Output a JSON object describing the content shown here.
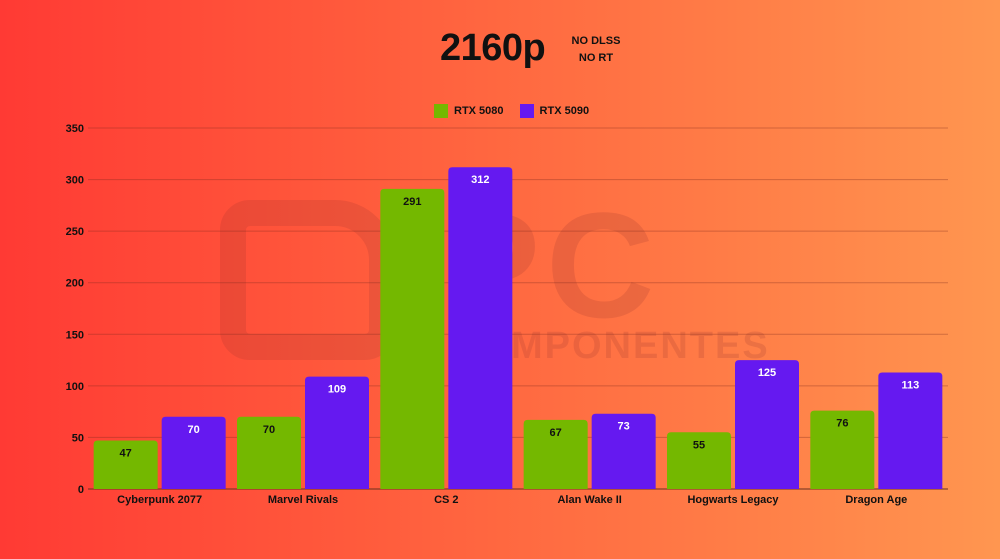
{
  "header": {
    "title": "2160p",
    "subtitle_line1": "NO DLSS",
    "subtitle_line2": "NO RT"
  },
  "watermark": {
    "big": "PC",
    "small": "COMPONENTES"
  },
  "chart_data": {
    "type": "bar",
    "title": "2160p",
    "categories": [
      "Cyberpunk 2077",
      "Marvel Rivals",
      "CS 2",
      "Alan Wake II",
      "Hogwarts Legacy",
      "Dragon Age"
    ],
    "series": [
      {
        "name": "RTX 5080",
        "color": "#74b800",
        "label_color": "#111111",
        "values": [
          47,
          70,
          291,
          67,
          55,
          76
        ]
      },
      {
        "name": "RTX 5090",
        "color": "#6519f0",
        "label_color": "#ffffff",
        "values": [
          70,
          109,
          312,
          73,
          125,
          113
        ]
      }
    ],
    "ylim": [
      0,
      350
    ],
    "yticks": [
      0,
      50,
      100,
      150,
      200,
      250,
      300,
      350
    ],
    "grid": true,
    "legend_position": "top-center"
  }
}
